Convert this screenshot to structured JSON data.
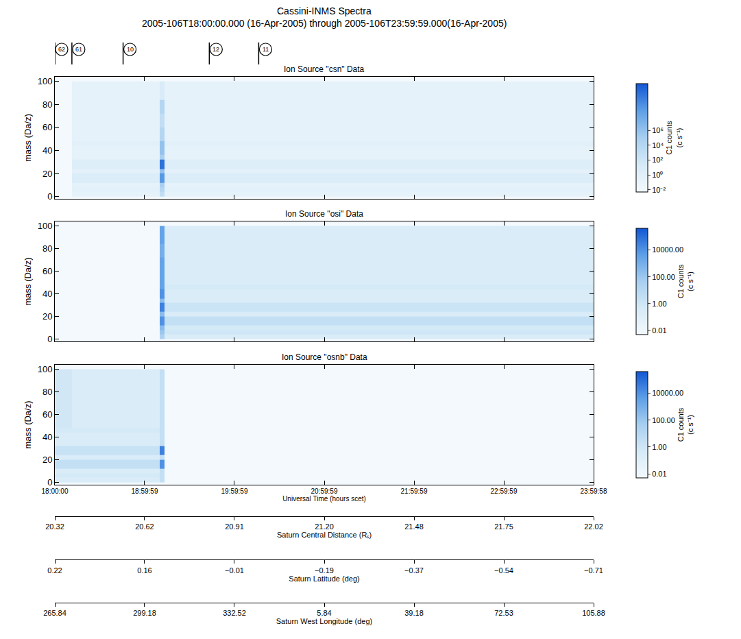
{
  "chart_data": {
    "type": "heatmap",
    "title": "Cassini-INMS Spectra",
    "subtitle": "2005-106T18:00:00.000 (16-Apr-2005) through 2005-106T23:59:59.000(16-Apr-2005)",
    "x_label": "Universal Time (hours scet)",
    "y_label": "mass (Da/z)",
    "xlim": [
      18.0,
      23.99944
    ],
    "xticks": [
      {
        "value": 18.0,
        "label": "18:00:00"
      },
      {
        "value": 18.99972,
        "label": "18:59:59"
      },
      {
        "value": 19.99972,
        "label": "19:59:59"
      },
      {
        "value": 20.99972,
        "label": "20:59:59"
      },
      {
        "value": 21.99972,
        "label": "21:59:59"
      },
      {
        "value": 22.99972,
        "label": "22:59:59"
      },
      {
        "value": 23.99944,
        "label": "23:59:58"
      }
    ],
    "ylim": [
      -2,
      104
    ],
    "yticks": [
      0,
      20,
      40,
      60,
      80,
      100
    ],
    "x_edges": [
      18.0,
      18.19,
      18.6,
      19.0,
      19.17,
      19.22,
      19.6,
      20.0,
      21.0,
      22.0,
      23.0,
      23.99944
    ],
    "y_edges": [
      0,
      4,
      8,
      12,
      20,
      24,
      32,
      36,
      44,
      48,
      60,
      72,
      84,
      100
    ],
    "events": [
      {
        "x": 18.0,
        "label": "62"
      },
      {
        "x": 18.19,
        "label": "61"
      },
      {
        "x": 18.76,
        "label": "10"
      },
      {
        "x": 19.72,
        "label": "12"
      },
      {
        "x": 20.27,
        "label": "11"
      }
    ],
    "secondary_axes": [
      {
        "title": "Saturn Central Distance (Rₛ)",
        "ticks": [
          {
            "value": 18.0,
            "label": "20.32"
          },
          {
            "value": 18.99972,
            "label": "20.62"
          },
          {
            "value": 19.99972,
            "label": "20.91"
          },
          {
            "value": 20.99972,
            "label": "21.20"
          },
          {
            "value": 21.99972,
            "label": "21.48"
          },
          {
            "value": 22.99972,
            "label": "21.75"
          },
          {
            "value": 23.99944,
            "label": "22.02"
          }
        ]
      },
      {
        "title": "Saturn Latitude (deg)",
        "ticks": [
          {
            "value": 18.0,
            "label": "0.22"
          },
          {
            "value": 18.99972,
            "label": "0.16"
          },
          {
            "value": 19.99972,
            "label": "−0.01"
          },
          {
            "value": 20.99972,
            "label": "−0.19"
          },
          {
            "value": 21.99972,
            "label": "−0.37"
          },
          {
            "value": 22.99972,
            "label": "−0.54"
          },
          {
            "value": 23.99944,
            "label": "−0.71"
          }
        ]
      },
      {
        "title": "Saturn West Longitude (deg)",
        "ticks": [
          {
            "value": 18.0,
            "label": "265.84"
          },
          {
            "value": 18.99972,
            "label": "299.18"
          },
          {
            "value": 19.99972,
            "label": "332.52"
          },
          {
            "value": 20.99972,
            "label": "5.84"
          },
          {
            "value": 21.99972,
            "label": "39.18"
          },
          {
            "value": 22.99972,
            "label": "72.53"
          },
          {
            "value": 23.99944,
            "label": "105.88"
          }
        ]
      }
    ],
    "panels": [
      {
        "title": "Ion Source \"csn\" Data",
        "colorbar_title": "C1 counts (c s⁻¹)",
        "zlim": [
          0.005,
          2000000000000
        ],
        "zticks": [
          {
            "value": 0.01,
            "label": "10⁻²"
          },
          {
            "value": 1,
            "label": "10⁰"
          },
          {
            "value": 100,
            "label": "10²"
          },
          {
            "value": 10000,
            "label": "10⁴"
          },
          {
            "value": 1000000,
            "label": "10⁶"
          }
        ],
        "cells": [
          [
            null,
            0.2,
            0.2,
            0.2,
            1000,
            0.2,
            0.2,
            0.2,
            0.2,
            0.2,
            0.2
          ],
          [
            null,
            0.5,
            0.5,
            0.5,
            10000,
            0.5,
            0.5,
            0.5,
            0.5,
            0.5,
            0.5
          ],
          [
            null,
            0.3,
            0.3,
            0.3,
            100000,
            0.3,
            0.3,
            0.3,
            0.3,
            0.3,
            0.3
          ],
          [
            null,
            5,
            5,
            5,
            1000000000,
            5,
            5,
            5,
            5,
            5,
            5
          ],
          [
            null,
            0.4,
            0.4,
            0.4,
            1000000,
            0.4,
            0.4,
            0.4,
            0.4,
            0.4,
            0.4
          ],
          [
            null,
            3,
            3,
            3,
            100000000000,
            3,
            3,
            3,
            3,
            3,
            3
          ],
          [
            null,
            0.3,
            0.3,
            0.3,
            100000,
            0.3,
            0.3,
            0.3,
            0.3,
            0.3,
            0.3
          ],
          [
            null,
            0.3,
            0.3,
            0.3,
            1000000,
            0.3,
            0.3,
            0.3,
            0.3,
            0.3,
            0.3
          ],
          [
            null,
            0.8,
            0.8,
            0.8,
            1000000,
            0.8,
            0.8,
            0.8,
            0.8,
            0.8,
            0.8
          ],
          [
            null,
            0.3,
            0.3,
            0.3,
            10000,
            0.3,
            0.3,
            0.3,
            0.3,
            0.3,
            0.3
          ],
          [
            null,
            0.3,
            0.3,
            0.3,
            1000,
            0.3,
            0.3,
            0.3,
            0.3,
            0.3,
            0.3
          ],
          [
            null,
            0.3,
            0.3,
            0.3,
            10000,
            0.3,
            0.3,
            0.3,
            0.3,
            0.3,
            0.3
          ],
          [
            null,
            0.3,
            0.3,
            0.3,
            10,
            0.3,
            0.3,
            0.3,
            0.3,
            0.3,
            0.3
          ]
        ]
      },
      {
        "title": "Ion Source \"osi\" Data",
        "colorbar_title": "C1 counts (c s⁻¹)",
        "zlim": [
          0.005,
          400000
        ],
        "zticks": [
          0.01,
          {
            "value": 1,
            "label": "1.00"
          },
          {
            "value": 100,
            "label": "100.00"
          },
          {
            "value": 10000,
            "label": "10000.00"
          }
        ],
        "cells": [
          [
            null,
            null,
            null,
            null,
            30,
            0.3,
            0.3,
            0.3,
            0.3,
            0.3,
            0.3
          ],
          [
            null,
            null,
            null,
            null,
            100,
            1,
            1,
            1,
            1,
            1,
            1
          ],
          [
            null,
            null,
            null,
            null,
            300,
            0.5,
            0.5,
            0.5,
            0.5,
            0.5,
            0.5
          ],
          [
            null,
            null,
            null,
            null,
            10000,
            3,
            3,
            3,
            3,
            3,
            3
          ],
          [
            null,
            null,
            null,
            null,
            300,
            0.3,
            0.3,
            0.3,
            0.3,
            0.3,
            0.3
          ],
          [
            null,
            null,
            null,
            null,
            30000,
            1.5,
            1.5,
            1.5,
            1.5,
            1.5,
            1.5
          ],
          [
            null,
            null,
            null,
            null,
            300,
            0.3,
            0.3,
            0.3,
            0.3,
            0.3,
            0.3
          ],
          [
            null,
            null,
            null,
            null,
            10000,
            0.3,
            0.3,
            0.3,
            0.3,
            0.3,
            0.3
          ],
          [
            null,
            null,
            null,
            null,
            3000,
            0.5,
            0.5,
            0.5,
            0.5,
            0.5,
            0.5
          ],
          [
            null,
            null,
            null,
            null,
            3000,
            0.3,
            0.3,
            0.3,
            0.3,
            0.3,
            0.3
          ],
          [
            null,
            null,
            null,
            null,
            3000,
            0.3,
            0.3,
            0.3,
            0.3,
            0.3,
            0.3
          ],
          [
            null,
            null,
            null,
            null,
            1000,
            0.3,
            0.3,
            0.3,
            0.3,
            0.3,
            0.3
          ],
          [
            null,
            null,
            null,
            null,
            3000,
            0.3,
            0.3,
            0.3,
            0.3,
            0.3,
            0.3
          ]
        ]
      },
      {
        "title": "Ion Source \"osnb\" Data",
        "colorbar_title": "C1 counts (c s⁻¹)",
        "zlim": [
          0.005,
          400000
        ],
        "zticks": [
          0.01,
          {
            "value": 1,
            "label": "1.00"
          },
          {
            "value": 100,
            "label": "100.00"
          },
          {
            "value": 10000,
            "label": "10000.00"
          }
        ],
        "cells": [
          [
            0.3,
            0.3,
            0.3,
            0.3,
            3,
            null,
            null,
            null,
            null,
            null,
            null
          ],
          [
            0.5,
            0.5,
            0.5,
            0.5,
            3,
            null,
            null,
            null,
            null,
            null,
            null
          ],
          [
            0.3,
            0.3,
            0.3,
            0.3,
            3,
            null,
            null,
            null,
            null,
            null,
            null
          ],
          [
            3,
            3,
            3,
            3,
            10000,
            null,
            null,
            null,
            null,
            null,
            null
          ],
          [
            0.3,
            0.3,
            0.3,
            0.3,
            3,
            null,
            null,
            null,
            null,
            null,
            null
          ],
          [
            2,
            2,
            2,
            2,
            30000,
            null,
            null,
            null,
            null,
            null,
            null
          ],
          [
            0.3,
            0.3,
            0.3,
            0.3,
            3,
            null,
            null,
            null,
            null,
            null,
            null
          ],
          [
            0.3,
            0.3,
            0.3,
            0.3,
            3,
            null,
            null,
            null,
            null,
            null,
            null
          ],
          [
            0.5,
            0.5,
            0.5,
            0.5,
            3,
            null,
            null,
            null,
            null,
            null,
            null
          ],
          [
            0.8,
            0.3,
            0.3,
            0.3,
            3,
            null,
            null,
            null,
            null,
            null,
            null
          ],
          [
            0.8,
            0.3,
            0.3,
            0.3,
            3,
            null,
            null,
            null,
            null,
            null,
            null
          ],
          [
            0.8,
            0.3,
            0.3,
            0.3,
            3,
            null,
            null,
            null,
            null,
            null,
            null
          ],
          [
            0.8,
            0.3,
            0.3,
            0.3,
            3,
            null,
            null,
            null,
            null,
            null,
            null
          ]
        ]
      }
    ]
  }
}
